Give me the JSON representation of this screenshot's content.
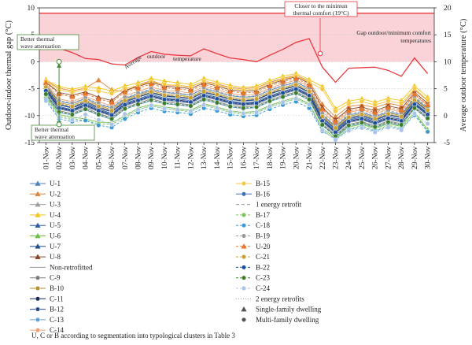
{
  "chart_data": {
    "type": "line",
    "categories": [
      "01-Nov",
      "02-Nov",
      "03-Nov",
      "04-Nov",
      "05-Nov",
      "06-Nov",
      "07-Nov",
      "08-Nov",
      "09-Nov",
      "10-Nov",
      "11-Nov",
      "12-Nov",
      "13-Nov",
      "14-Nov",
      "15-Nov",
      "16-Nov",
      "17-Nov",
      "18-Nov",
      "19-Nov",
      "20-Nov",
      "21-Nov",
      "22-Nov",
      "23-Nov",
      "24-Nov",
      "25-Nov",
      "26-Nov",
      "27-Nov",
      "28-Nov",
      "29-Nov",
      "30-Nov"
    ],
    "y_left": {
      "label": "Outdoor-indoor thermal gap (°C)",
      "ticks": [
        10,
        5,
        0,
        -5,
        -10,
        -15
      ],
      "lim": [
        -15,
        10
      ]
    },
    "y_right": {
      "label": "Average outdoor temperature (°C)",
      "ticks": [
        20,
        15,
        10,
        5,
        0,
        -5
      ],
      "lim": [
        -5,
        20
      ]
    },
    "gap_threshold": 9,
    "average_outdoor_temperature": [
      12.5,
      12.5,
      11.7,
      10.6,
      10.4,
      9.6,
      9.4,
      10.8,
      11.9,
      11.4,
      11.2,
      11.1,
      12.4,
      11.5,
      10.7,
      10.4,
      10.0,
      11.2,
      12.3,
      13.6,
      14.3,
      9.0,
      6.2,
      8.8,
      8.9,
      9.0,
      8.4,
      7.3,
      10.7,
      7.8
    ],
    "series": [
      {
        "name": "U-1",
        "group": "1 energy retrofit",
        "dwelling": "Single-family dwelling",
        "color": "#4e82be",
        "dash": false,
        "values": [
          -4.2,
          -7.4,
          -7.8,
          -6.8,
          -7.9,
          -8.6,
          -6.8,
          -6.0,
          -5.2,
          -5.7,
          -5.9,
          -6.2,
          -5.0,
          -5.6,
          -6.3,
          -6.6,
          -6.4,
          -5.3,
          -4.5,
          -3.8,
          -5.0,
          -9.8,
          -12.0,
          -9.9,
          -9.4,
          -10.2,
          -9.3,
          -9.8,
          -6.7,
          -8.6
        ]
      },
      {
        "name": "U-2",
        "group": "1 energy retrofit",
        "dwelling": "Single-family dwelling",
        "color": "#e3843b",
        "dash": false,
        "values": [
          -3.5,
          -4.9,
          -5.4,
          -4.9,
          -3.4,
          -5.2,
          -5.6,
          -4.3,
          -3.5,
          -4.3,
          -4.4,
          -4.6,
          -3.6,
          -4.1,
          -4.8,
          -5.0,
          -4.8,
          -3.8,
          -3.1,
          -2.5,
          -3.6,
          -7.9,
          -10.2,
          -8.3,
          -8.0,
          -8.5,
          -7.7,
          -8.2,
          -5.2,
          -7.2
        ]
      },
      {
        "name": "U-3",
        "group": "1 energy retrofit",
        "dwelling": "Single-family dwelling",
        "color": "#a0a0a0",
        "dash": false,
        "values": [
          -5.6,
          -8.8,
          -9.3,
          -8.3,
          -9.3,
          -10.1,
          -8.2,
          -7.4,
          -6.6,
          -7.2,
          -7.4,
          -7.7,
          -6.5,
          -7.1,
          -7.8,
          -8.1,
          -7.9,
          -6.8,
          -6.0,
          -5.3,
          -6.5,
          -11.2,
          -13.3,
          -11.3,
          -10.8,
          -11.6,
          -10.7,
          -11.2,
          -8.1,
          -10.0
        ]
      },
      {
        "name": "U-4",
        "group": "1 energy retrofit",
        "dwelling": "Single-family dwelling",
        "color": "#f2c518",
        "dash": false,
        "values": [
          -3.3,
          -4.6,
          -5.1,
          -4.6,
          -4.9,
          -5.4,
          -4.5,
          -3.9,
          -3.1,
          -3.6,
          -3.9,
          -4.2,
          -3.1,
          -3.8,
          -4.4,
          -4.8,
          -4.5,
          -3.5,
          -2.7,
          -2.2,
          -3.3,
          -4.6,
          -8.7,
          -7.3,
          -6.9,
          -7.5,
          -6.8,
          -7.2,
          -4.5,
          -6.6
        ]
      },
      {
        "name": "U-5",
        "group": "1 energy retrofit",
        "dwelling": "Single-family dwelling",
        "color": "#2a5aa8",
        "dash": false,
        "values": [
          -5.0,
          -8.3,
          -8.9,
          -7.8,
          -8.8,
          -9.6,
          -7.7,
          -6.9,
          -6.1,
          -6.7,
          -6.9,
          -7.2,
          -6.0,
          -6.6,
          -7.3,
          -7.6,
          -7.4,
          -6.3,
          -5.5,
          -4.8,
          -6.0,
          -10.7,
          -12.8,
          -10.8,
          -10.3,
          -11.1,
          -10.2,
          -10.7,
          -7.6,
          -9.5
        ]
      },
      {
        "name": "U-6",
        "group": "1 energy retrofit",
        "dwelling": "Single-family dwelling",
        "color": "#6fbe44",
        "dash": false,
        "values": [
          -6.4,
          -9.8,
          -10.3,
          -10.6,
          -11.2,
          -11.3,
          -10.1,
          -8.6,
          -7.9,
          -8.4,
          -8.7,
          -9.0,
          -7.8,
          -8.4,
          -9.1,
          -9.4,
          -9.2,
          -8.1,
          -7.3,
          -6.6,
          -7.8,
          -12.4,
          -14.1,
          -12.1,
          -11.6,
          -12.4,
          -11.5,
          -12.0,
          -9.4,
          -12.6
        ]
      },
      {
        "name": "U-7",
        "group": "1 energy retrofit",
        "dwelling": "Single-family dwelling",
        "color": "#1f4e8c",
        "dash": false,
        "values": [
          -4.6,
          -7.9,
          -8.5,
          -7.4,
          -8.4,
          -9.2,
          -7.3,
          -6.5,
          -5.7,
          -6.3,
          -6.5,
          -6.8,
          -5.6,
          -6.2,
          -6.9,
          -7.2,
          -7.0,
          -5.9,
          -5.1,
          -4.4,
          -5.6,
          -10.3,
          -12.4,
          -10.4,
          -9.9,
          -10.7,
          -9.8,
          -10.3,
          -7.2,
          -9.1
        ]
      },
      {
        "name": "U-8",
        "group": "1 energy retrofit",
        "dwelling": "Single-family dwelling",
        "color": "#8a4424",
        "dash": false,
        "values": [
          -3.8,
          -5.7,
          -6.2,
          -5.6,
          -6.6,
          -7.2,
          -5.3,
          -4.6,
          -3.8,
          -4.5,
          -4.7,
          -5.0,
          -3.9,
          -4.5,
          -5.2,
          -5.5,
          -5.3,
          -4.2,
          -3.4,
          -2.8,
          -4.0,
          -8.5,
          -10.8,
          -8.8,
          -8.4,
          -9.1,
          -8.2,
          -8.7,
          -5.7,
          -7.7
        ]
      },
      {
        "name": "C-9",
        "group": "Non-retrofitted",
        "dwelling": "Multi-family dwelling",
        "color": "#7a7a7a",
        "dash": false,
        "values": [
          -5.9,
          -9.1,
          -9.6,
          -8.6,
          -9.6,
          -10.4,
          -8.5,
          -7.7,
          -6.9,
          -7.5,
          -7.7,
          -8.0,
          -6.8,
          -7.4,
          -8.1,
          -8.4,
          -8.2,
          -7.1,
          -6.3,
          -5.6,
          -6.8,
          -11.5,
          -13.6,
          -11.6,
          -11.1,
          -11.9,
          -11.0,
          -11.5,
          -8.4,
          -10.3
        ]
      },
      {
        "name": "B-10",
        "group": "Non-retrofitted",
        "dwelling": "Multi-family dwelling",
        "color": "#b8902c",
        "dash": false,
        "values": [
          -4.4,
          -7.6,
          -8.1,
          -7.1,
          -8.1,
          -8.9,
          -7.0,
          -6.2,
          -5.4,
          -6.0,
          -6.2,
          -6.5,
          -5.3,
          -5.9,
          -6.6,
          -6.9,
          -6.7,
          -5.6,
          -4.8,
          -4.1,
          -5.3,
          -10.0,
          -12.1,
          -10.1,
          -9.6,
          -10.4,
          -9.5,
          -10.0,
          -6.9,
          -8.8
        ]
      },
      {
        "name": "C-11",
        "group": "Non-retrofitted",
        "dwelling": "Multi-family dwelling",
        "color": "#1c2a55",
        "dash": false,
        "values": [
          -5.2,
          -8.5,
          -9.0,
          -8.0,
          -9.0,
          -9.8,
          -7.9,
          -7.1,
          -6.3,
          -6.9,
          -7.1,
          -7.4,
          -6.2,
          -6.8,
          -7.5,
          -7.8,
          -7.6,
          -6.5,
          -5.7,
          -5.0,
          -6.2,
          -10.9,
          -13.0,
          -11.0,
          -10.5,
          -11.3,
          -10.4,
          -10.9,
          -7.8,
          -9.7
        ]
      },
      {
        "name": "B-12",
        "group": "Non-retrofitted",
        "dwelling": "Multi-family dwelling",
        "color": "#2b4c8a",
        "dash": false,
        "values": [
          -4.8,
          -8.0,
          -8.6,
          -7.6,
          -8.6,
          -9.3,
          -7.5,
          -6.6,
          -5.8,
          -6.4,
          -6.6,
          -6.9,
          -5.7,
          -6.3,
          -7.0,
          -7.3,
          -7.1,
          -6.0,
          -5.2,
          -4.5,
          -5.7,
          -10.4,
          -12.6,
          -10.6,
          -10.1,
          -10.9,
          -9.9,
          -10.4,
          -7.3,
          -9.2
        ]
      },
      {
        "name": "C-13",
        "group": "Non-retrofitted",
        "dwelling": "Multi-family dwelling",
        "color": "#5fa0d8",
        "dash": false,
        "values": [
          -6.2,
          -9.4,
          -9.9,
          -8.9,
          -9.9,
          -10.7,
          -8.8,
          -8.0,
          -7.2,
          -7.8,
          -8.0,
          -8.3,
          -7.1,
          -7.7,
          -8.4,
          -8.7,
          -8.5,
          -7.4,
          -6.6,
          -5.9,
          -7.1,
          -11.8,
          -13.9,
          -11.9,
          -11.4,
          -12.2,
          -11.3,
          -11.8,
          -8.7,
          -10.6
        ]
      },
      {
        "name": "C-14",
        "group": "Non-retrofitted",
        "dwelling": "Multi-family dwelling",
        "color": "#f0a070",
        "dash": false,
        "values": [
          -4.0,
          -6.9,
          -7.4,
          -6.4,
          -7.4,
          -8.2,
          -6.3,
          -5.5,
          -4.7,
          -5.3,
          -5.5,
          -5.8,
          -4.6,
          -5.2,
          -5.9,
          -6.2,
          -6.0,
          -4.9,
          -4.1,
          -3.4,
          -4.6,
          -9.3,
          -11.4,
          -9.4,
          -8.9,
          -9.7,
          -8.8,
          -9.3,
          -6.2,
          -8.1
        ]
      },
      {
        "name": "B-15",
        "group": "Non-retrofitted",
        "dwelling": "Multi-family dwelling",
        "color": "#f5c842",
        "dash": false,
        "values": [
          -3.6,
          -5.2,
          -5.7,
          -5.1,
          -5.5,
          -5.9,
          -5.0,
          -4.4,
          -3.7,
          -4.2,
          -4.4,
          -4.7,
          -3.6,
          -4.3,
          -4.9,
          -5.3,
          -5.0,
          -4.0,
          -3.2,
          -2.7,
          -3.8,
          -5.1,
          -9.2,
          -7.8,
          -7.4,
          -8.0,
          -7.3,
          -7.7,
          -5.0,
          -7.1
        ]
      },
      {
        "name": "B-16",
        "group": "Non-retrofitted",
        "dwelling": "Multi-family dwelling",
        "color": "#3d6fb5",
        "dash": false,
        "values": [
          -5.5,
          -8.7,
          -9.2,
          -8.2,
          -9.2,
          -10.0,
          -8.1,
          -7.3,
          -6.5,
          -7.1,
          -7.3,
          -7.6,
          -6.4,
          -7.0,
          -7.7,
          -8.0,
          -7.8,
          -6.7,
          -5.9,
          -5.2,
          -6.4,
          -11.1,
          -13.2,
          -11.2,
          -10.7,
          -11.5,
          -10.6,
          -11.1,
          -8.0,
          -9.9
        ]
      },
      {
        "name": "B-17",
        "group": "2 energy retrofits",
        "dwelling": "Multi-family dwelling",
        "color": "#7cc456",
        "dash": true,
        "values": [
          -6.7,
          -10.1,
          -10.6,
          -10.9,
          -11.5,
          -11.6,
          -10.4,
          -8.9,
          -8.2,
          -8.7,
          -9.0,
          -9.3,
          -8.1,
          -8.7,
          -9.4,
          -9.7,
          -9.5,
          -8.4,
          -7.6,
          -6.9,
          -8.1,
          -12.7,
          -14.4,
          -12.4,
          -11.9,
          -12.7,
          -11.8,
          -12.3,
          -9.7,
          -12.9
        ]
      },
      {
        "name": "C-18",
        "group": "2 energy retrofits",
        "dwelling": "Multi-family dwelling",
        "color": "#3b9ad6",
        "dash": true,
        "values": [
          -7.2,
          -10.6,
          -11.1,
          -10.9,
          -11.8,
          -12.2,
          -10.6,
          -9.4,
          -8.6,
          -9.2,
          -9.4,
          -9.7,
          -8.6,
          -9.1,
          -9.8,
          -10.1,
          -9.9,
          -8.8,
          -8.0,
          -7.4,
          -8.6,
          -12.9,
          -14.3,
          -12.6,
          -12.1,
          -12.9,
          -12.0,
          -12.5,
          -9.9,
          -13.0
        ]
      },
      {
        "name": "B-19",
        "group": "2 energy retrofits",
        "dwelling": "Multi-family dwelling",
        "color": "#9a9a9a",
        "dash": true,
        "values": [
          -4.3,
          -7.2,
          -7.7,
          -6.7,
          -7.7,
          -8.5,
          -6.6,
          -5.8,
          -5.0,
          -5.6,
          -5.8,
          -6.1,
          -4.9,
          -5.5,
          -6.2,
          -6.5,
          -6.3,
          -5.2,
          -4.4,
          -3.7,
          -4.9,
          -9.6,
          -11.7,
          -9.7,
          -9.2,
          -10.0,
          -9.1,
          -9.6,
          -6.5,
          -8.4
        ]
      },
      {
        "name": "U-20",
        "group": "2 energy retrofits",
        "dwelling": "Single-family dwelling",
        "color": "#e8762b",
        "dash": true,
        "values": [
          -3.9,
          -6.0,
          -6.5,
          -5.9,
          -6.9,
          -7.5,
          -5.6,
          -4.9,
          -4.1,
          -4.8,
          -5.0,
          -5.3,
          -4.2,
          -4.8,
          -5.5,
          -5.8,
          -5.6,
          -4.5,
          -3.7,
          -3.1,
          -4.3,
          -8.8,
          -11.1,
          -9.1,
          -8.7,
          -9.4,
          -8.5,
          -9.0,
          -6.0,
          -8.0
        ]
      },
      {
        "name": "C-21",
        "group": "2 energy retrofits",
        "dwelling": "Multi-family dwelling",
        "color": "#c9a030",
        "dash": true,
        "values": [
          -4.7,
          -7.8,
          -8.3,
          -7.3,
          -8.3,
          -9.1,
          -7.2,
          -6.4,
          -5.6,
          -6.2,
          -6.4,
          -6.7,
          -5.5,
          -6.1,
          -6.8,
          -7.1,
          -6.9,
          -5.8,
          -5.0,
          -4.3,
          -5.5,
          -10.2,
          -12.3,
          -10.3,
          -9.8,
          -10.6,
          -9.7,
          -10.2,
          -7.1,
          -9.0
        ]
      },
      {
        "name": "B-22",
        "group": "2 energy retrofits",
        "dwelling": "Multi-family dwelling",
        "color": "#1e4f9c",
        "dash": true,
        "values": [
          -5.4,
          -8.6,
          -9.1,
          -8.1,
          -9.1,
          -9.9,
          -8.0,
          -7.2,
          -6.4,
          -7.0,
          -7.2,
          -7.5,
          -6.3,
          -6.9,
          -7.6,
          -7.9,
          -7.7,
          -6.6,
          -5.8,
          -5.1,
          -6.3,
          -11.0,
          -13.1,
          -11.1,
          -10.6,
          -11.4,
          -10.5,
          -11.0,
          -7.9,
          -9.8
        ]
      },
      {
        "name": "C-23",
        "group": "2 energy retrofits",
        "dwelling": "Multi-family dwelling",
        "color": "#3e7d2c",
        "dash": true,
        "values": [
          -6.0,
          -9.3,
          -9.8,
          -8.8,
          -9.8,
          -10.6,
          -8.7,
          -7.9,
          -7.1,
          -7.7,
          -7.9,
          -8.2,
          -7.0,
          -7.6,
          -8.3,
          -8.6,
          -8.4,
          -7.3,
          -6.5,
          -5.8,
          -7.0,
          -11.7,
          -13.8,
          -11.8,
          -11.3,
          -12.1,
          -11.2,
          -11.7,
          -8.6,
          -10.5
        ]
      },
      {
        "name": "C-24",
        "group": "2 energy retrofits",
        "dwelling": "Multi-family dwelling",
        "color": "#a9c4e8",
        "dash": true,
        "values": [
          -7.0,
          -10.3,
          -10.8,
          -9.8,
          -10.8,
          -11.6,
          -9.7,
          -8.9,
          -8.1,
          -8.7,
          -8.9,
          -9.2,
          -8.0,
          -8.6,
          -9.3,
          -9.6,
          -9.4,
          -8.3,
          -7.5,
          -6.8,
          -8.0,
          -12.7,
          -14.5,
          -12.8,
          -12.3,
          -13.1,
          -12.2,
          -12.7,
          -9.6,
          -11.5
        ]
      }
    ],
    "annotations": {
      "closer": "Closer to the minimun thermal comfort (19°C)",
      "better_top": "Better thermal wave attenuation",
      "better_bottom": "Better thermal wave attenuation",
      "gap_label": "Gap outdoor/minimum comfort temperatures",
      "avg_label": "Average outdoor temperature"
    },
    "legend": {
      "col1": [
        "U-1",
        "U-2",
        "U-3",
        "U-4",
        "U-5",
        "U-6",
        "U-7",
        "U-8",
        "Non-retrofitted",
        "C-9",
        "B-10",
        "C-11",
        "B-12",
        "C-13",
        "C-14"
      ],
      "col2": [
        "B-15",
        "B-16",
        "1 energy retrofit",
        "B-17",
        "C-18",
        "B-19",
        "U-20",
        "C-21",
        "B-22",
        "C-23",
        "C-24",
        "2 energy retrofits",
        "Single-family dwelling",
        "Multi-family dwelling"
      ],
      "footnote": "U, C or B according to segmentation into typological clusters in Table 3"
    },
    "colors": {
      "threshold": "#e8383d",
      "band": "#f9d3d8",
      "annotation_green": "#4a8c3a"
    }
  }
}
